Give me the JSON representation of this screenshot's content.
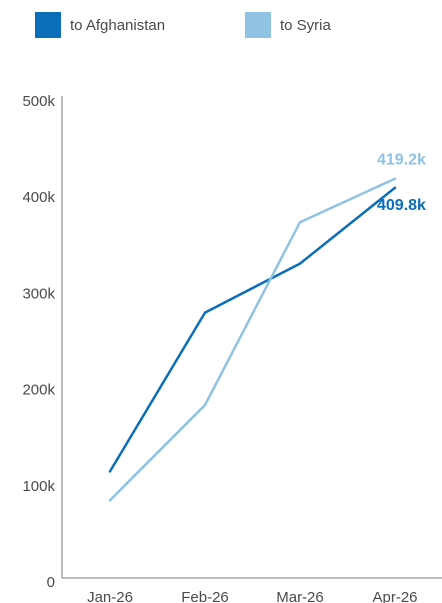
{
  "legend": [
    {
      "label": "to Afghanistan",
      "color": "#0b6eb8"
    },
    {
      "label": "to Syria",
      "color": "#8fc2e3"
    }
  ],
  "chart_data": {
    "type": "line",
    "categories": [
      "Jan-26",
      "Feb-26",
      "Mar-26",
      "Apr-26"
    ],
    "series": [
      {
        "name": "to Afghanistan",
        "color": "#0b6eb8",
        "values": [
          115000,
          280000,
          331000,
          409800
        ],
        "end_label": "409.8k"
      },
      {
        "name": "to Syria",
        "color": "#8fc2e3",
        "values": [
          85000,
          184000,
          374000,
          419200
        ],
        "end_label": "419.2k"
      }
    ],
    "y_ticks": [
      {
        "value": 0,
        "label": "0"
      },
      {
        "value": 100000,
        "label": "100k"
      },
      {
        "value": 200000,
        "label": "200k"
      },
      {
        "value": 300000,
        "label": "300k"
      },
      {
        "value": 400000,
        "label": "400k"
      },
      {
        "value": 500000,
        "label": "500k"
      }
    ],
    "ylim": [
      0,
      500000
    ],
    "grid": false
  }
}
